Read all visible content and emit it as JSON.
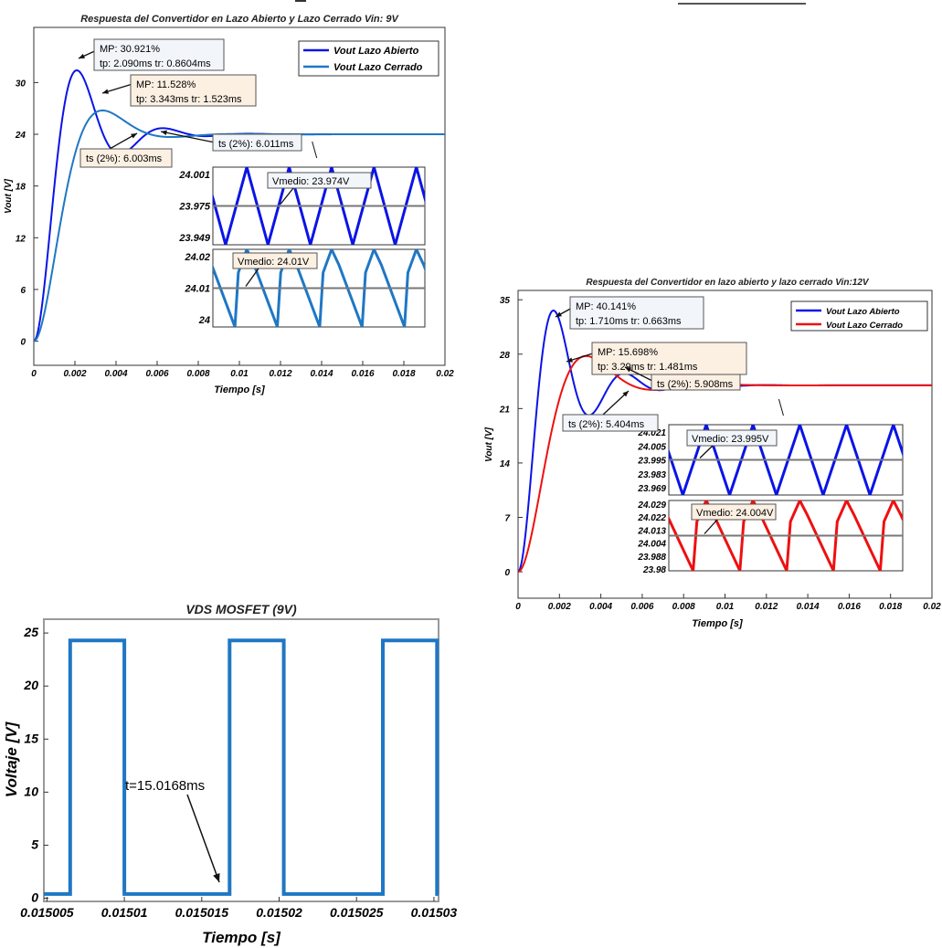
{
  "chart_data": [
    {
      "type": "line",
      "title": "Respuesta del Convertidor en Lazo Abierto y Lazo Cerrado Vin: 9V",
      "xlabel": "Tiempo [s]",
      "ylabel": "Vout [V]",
      "xlim": [
        0,
        0.02
      ],
      "ylim": [
        -2.8,
        36.4
      ],
      "xticks": [
        0,
        0.002,
        0.004,
        0.006,
        0.008,
        0.01,
        0.012,
        0.014,
        0.016,
        0.018,
        0.02
      ],
      "xtick_labels": [
        "0",
        "0.002",
        "0.004",
        "0.006",
        "0.008",
        "0.01",
        "0.012",
        "0.014",
        "0.016",
        "0.018",
        "0.02"
      ],
      "yticks": [
        0,
        6,
        12,
        18,
        24,
        30
      ],
      "ytick_labels": [
        "0",
        "6",
        "12",
        "18",
        "24",
        "30"
      ],
      "legend": {
        "placement": "top-right",
        "entries": [
          "Vout Lazo Abierto",
          "Vout Lazo Cerrado"
        ]
      },
      "series": [
        {
          "name": "Vout Lazo Abierto",
          "color": "#0a14e6",
          "final": 24,
          "mp_percent": 30.921,
          "tp_ms": 2.09
        },
        {
          "name": "Vout Lazo Cerrado",
          "color": "#1f77c4",
          "final": 24,
          "mp_percent": 11.528,
          "tp_ms": 3.343
        }
      ],
      "annotations": [
        {
          "lines": [
            "MP: 30.921%",
            "tp: 2.090ms    tr: 0.8604ms"
          ],
          "bg": "#f2f6fb"
        },
        {
          "lines": [
            "MP: 11.528%",
            "tp: 3.343ms    tr: 1.523ms"
          ],
          "bg": "#fcf0e2"
        },
        {
          "lines": [
            "ts (2%): 6.003ms"
          ],
          "bg": "#fcf0e2"
        },
        {
          "lines": [
            "ts (2%): 6.011ms"
          ],
          "bg": "#f2f6fb"
        }
      ],
      "insets": [
        {
          "yticks": [
            "24.001",
            "23.975",
            "23.949"
          ],
          "label": "Vmedio: 23.974V",
          "bg": "#f2f6fb",
          "color": "#0a14e6",
          "shape": "triangle"
        },
        {
          "yticks": [
            "24.02",
            "24.01",
            "24"
          ],
          "label": "Vmedio: 24.01V",
          "bg": "#fcf0e2",
          "color": "#1f77c4",
          "shape": "sawtooth"
        }
      ]
    },
    {
      "type": "line",
      "title": "Respuesta del Convertidor en lazo abierto y lazo cerrado Vin:12V",
      "xlabel": "Tiempo [s]",
      "ylabel": "Vout [V]",
      "xlim": [
        0,
        0.02
      ],
      "ylim": [
        -3.4,
        36.2
      ],
      "xticks": [
        0,
        0.002,
        0.004,
        0.006,
        0.008,
        0.01,
        0.012,
        0.014,
        0.016,
        0.018,
        0.02
      ],
      "xtick_labels": [
        "0",
        "0.002",
        "0.004",
        "0.006",
        "0.008",
        "0.01",
        "0.012",
        "0.014",
        "0.016",
        "0.018",
        "0.02"
      ],
      "yticks": [
        0,
        7,
        14,
        21,
        28,
        35
      ],
      "ytick_labels": [
        "0",
        "7",
        "14",
        "21",
        "28",
        "35"
      ],
      "legend": {
        "placement": "top-right",
        "entries": [
          "Vout Lazo Abierto",
          "Vout Lazo Cerrado"
        ]
      },
      "series": [
        {
          "name": "Vout Lazo Abierto",
          "color": "#0a14e6",
          "final": 23.99,
          "mp_percent": 40.141,
          "tp_ms": 1.71
        },
        {
          "name": "Vout Lazo Cerrado",
          "color": "#ee1010",
          "final": 23.99,
          "mp_percent": 15.698,
          "tp_ms": 3.29
        }
      ],
      "annotations": [
        {
          "lines": [
            "MP: 40.141%",
            "tp: 1.710ms   tr: 0.663ms"
          ],
          "bg": "#f2f6fb"
        },
        {
          "lines": [
            "MP: 15.698%",
            "tp: 3.29ms    tr: 1.481ms"
          ],
          "bg": "#fcf0e2"
        },
        {
          "lines": [
            "ts (2%): 5.908ms"
          ],
          "bg": "#fcf0e2"
        },
        {
          "lines": [
            "ts (2%): 5.404ms"
          ],
          "bg": "#f2f6fb"
        }
      ],
      "insets": [
        {
          "yticks": [
            "24.021",
            "24.005",
            "23.995",
            "23.983",
            "23.969"
          ],
          "label": "Vmedio: 23.995V",
          "bg": "#f2f6fb",
          "color": "#0a14e6",
          "shape": "triangle"
        },
        {
          "yticks": [
            "24.029",
            "24.022",
            "24.013",
            "24.004",
            "23.988",
            "23.98"
          ],
          "label": "Vmedio: 24.004V",
          "bg": "#fcf0e2",
          "color": "#ee1010",
          "shape": "sawtooth"
        }
      ]
    },
    {
      "type": "line",
      "title": "VDS MOSFET (9V)",
      "xlabel": "Tiempo [s]",
      "ylabel": "Voltaje [V]",
      "xlim": [
        0.0150048,
        0.0150303
      ],
      "ylim": [
        -0.3,
        26.3
      ],
      "xticks": [
        0.015005,
        0.01501,
        0.015015,
        0.01502,
        0.015025,
        0.01503
      ],
      "xtick_labels": [
        "0.015005",
        "0.01501",
        "0.015015",
        "0.01502",
        "0.015025",
        "0.01503"
      ],
      "yticks": [
        0,
        5,
        10,
        15,
        20,
        25
      ],
      "ytick_labels": [
        "0",
        "5",
        "10",
        "15",
        "20",
        "25"
      ],
      "series": [
        {
          "name": "VDS",
          "color": "#1f77c4",
          "x": [
            0.0150048,
            0.0150065,
            0.0150065,
            0.01501,
            0.01501,
            0.0150168,
            0.0150168,
            0.0150203,
            0.0150203,
            0.0150267,
            0.0150267,
            0.0150302,
            0.0150302,
            0.0150303
          ],
          "y": [
            0.4,
            0.4,
            24.3,
            24.3,
            0.4,
            0.4,
            24.3,
            24.3,
            0.4,
            0.4,
            24.3,
            24.3,
            0.4,
            0.4
          ]
        }
      ],
      "annotations": [
        {
          "lines": [
            "t=15.0168ms"
          ],
          "bg": "none"
        }
      ]
    }
  ]
}
